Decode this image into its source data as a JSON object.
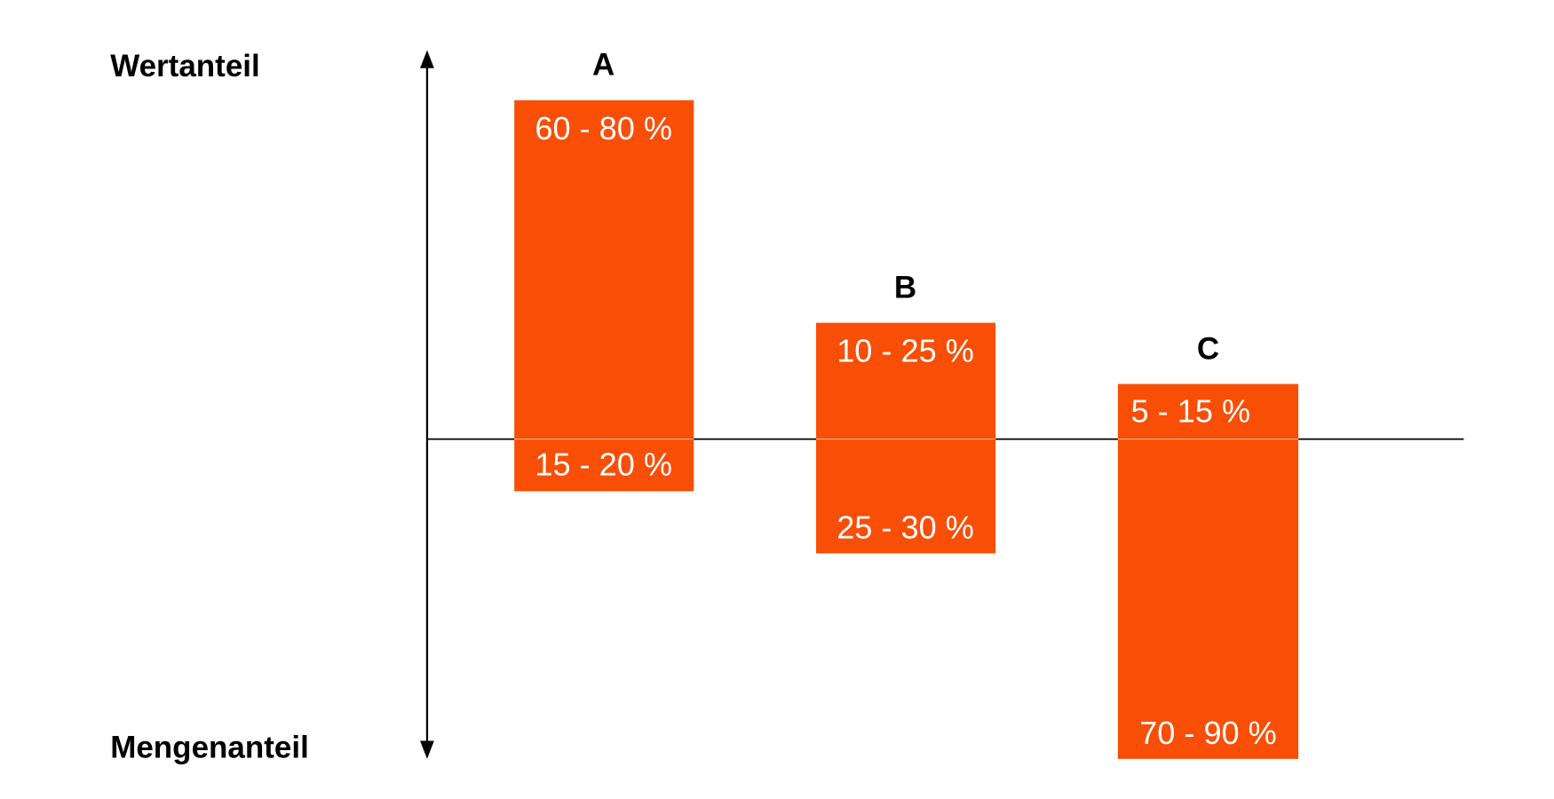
{
  "axis_labels": {
    "top": "Wertanteil",
    "bottom": "Mengenanteil"
  },
  "groups": [
    {
      "label": "A",
      "upper": "60 - 80 %",
      "lower": "15 - 20 %"
    },
    {
      "label": "B",
      "upper": "10 - 25 %",
      "lower": "25 - 30 %"
    },
    {
      "label": "C",
      "upper": "5 - 15 %",
      "lower": "70 - 90 %"
    }
  ]
}
